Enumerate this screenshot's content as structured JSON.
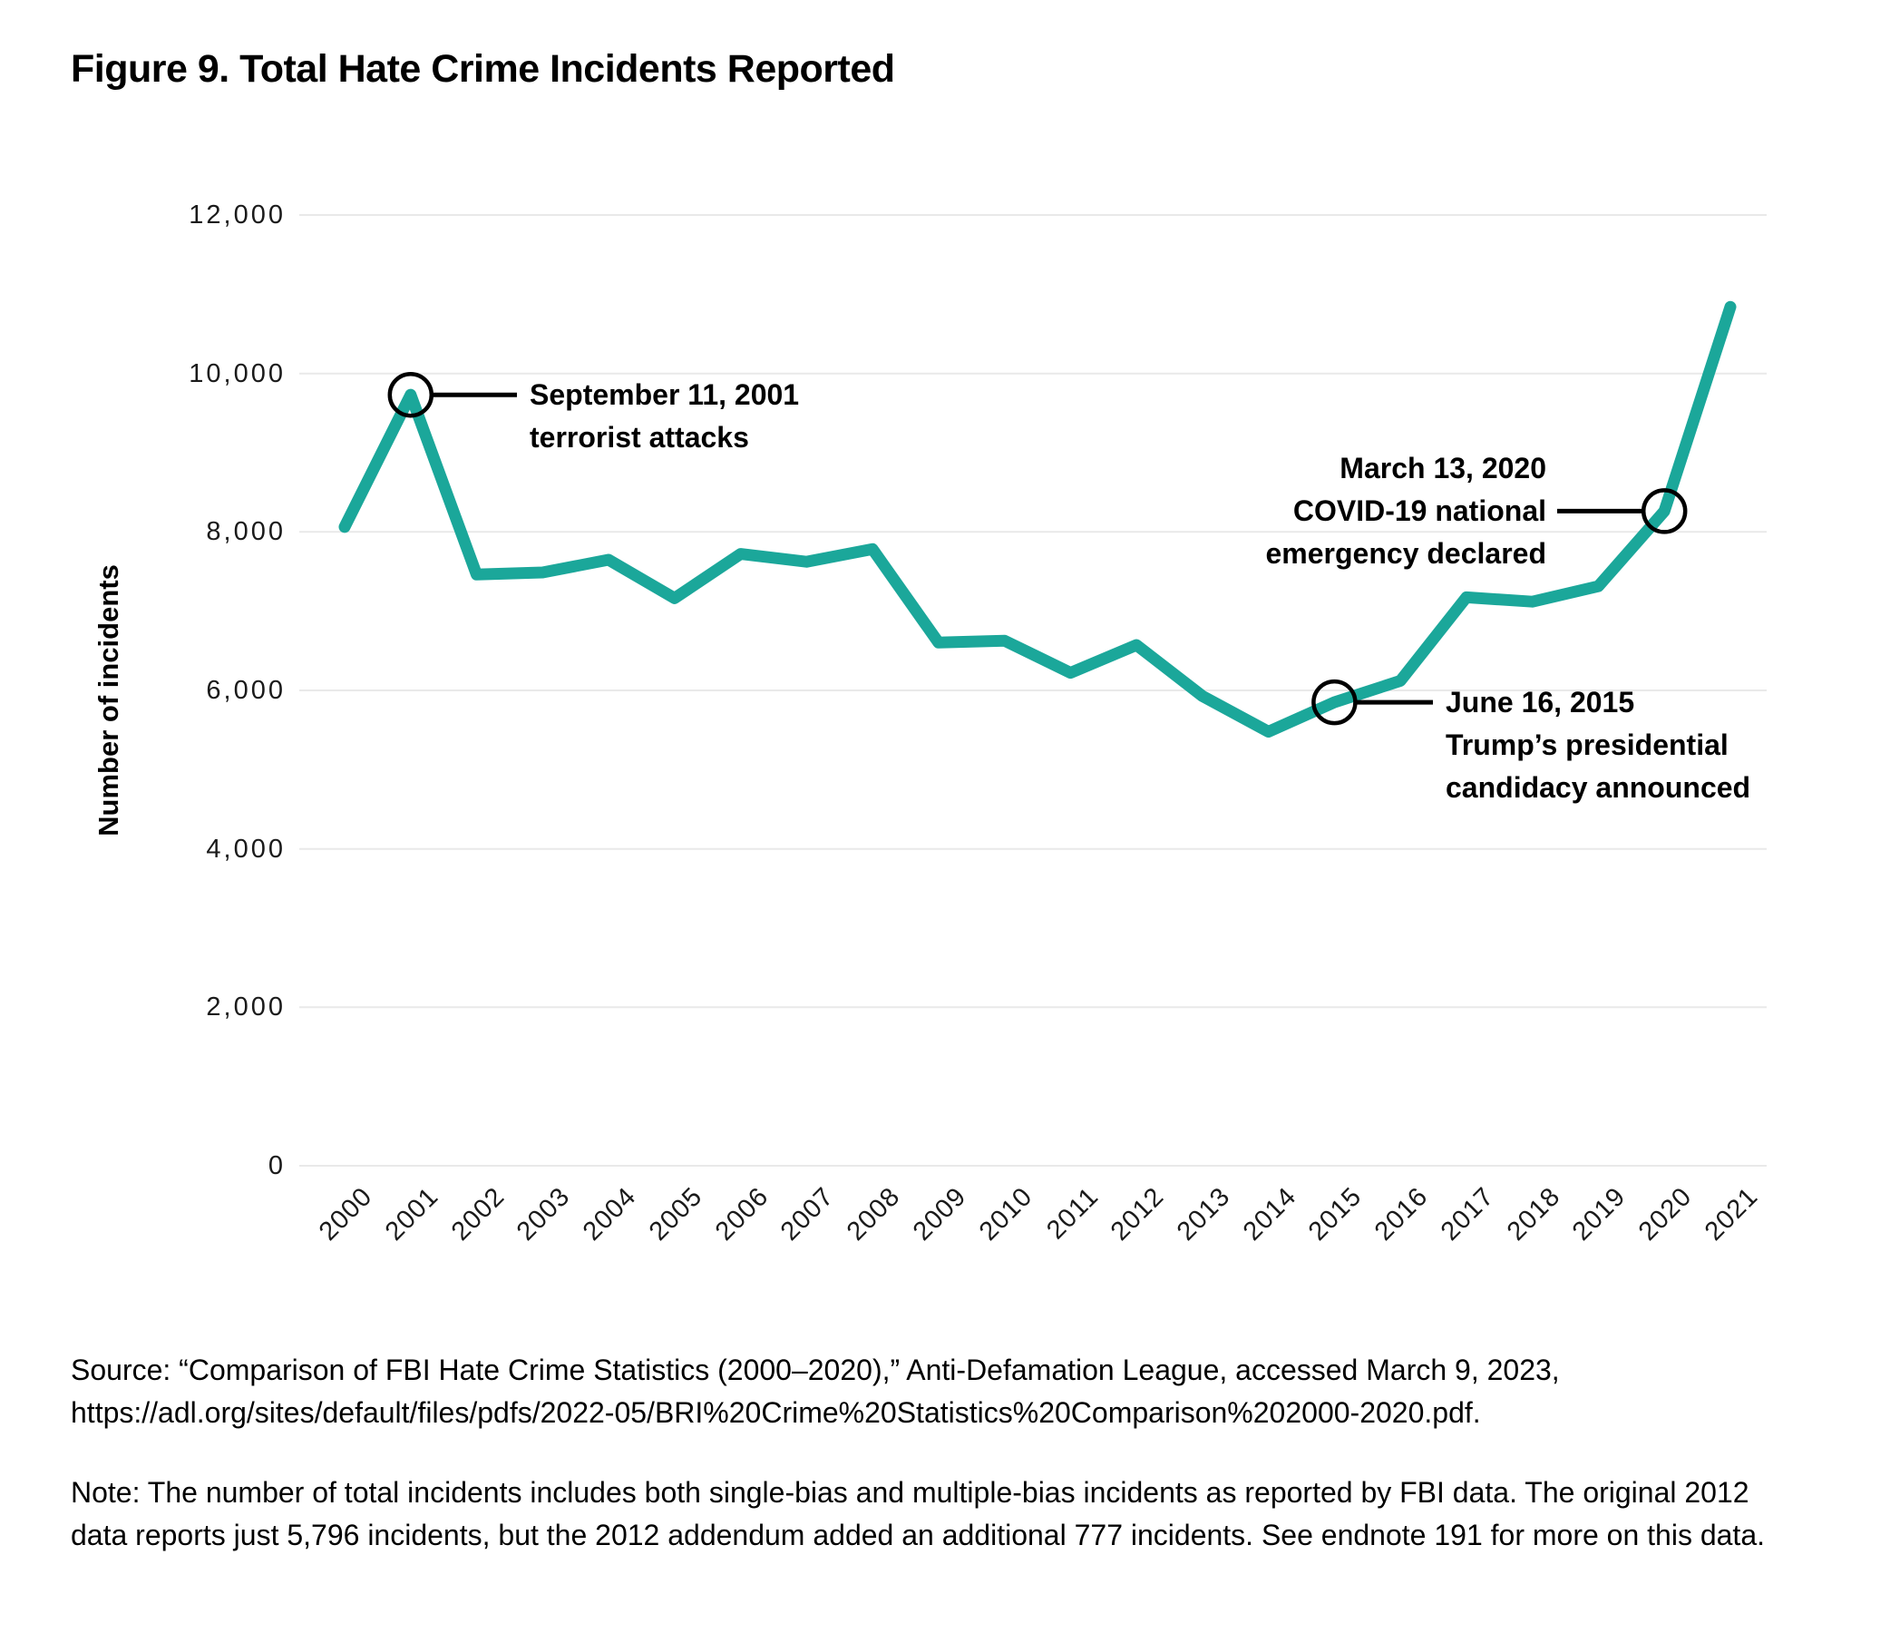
{
  "figure": {
    "title": "Figure 9. Total Hate Crime Incidents Reported",
    "source": "Source: “Comparison of FBI Hate Crime Statistics (2000–2020),” Anti-Defamation League, accessed March 9, 2023, https://adl.org/sites/default/files/pdfs/2022-05/BRI%20Crime%20Statistics%20Comparison%202000-2020.pdf.",
    "note": "Note: The number of total incidents includes both single-bias and multiple-bias incidents as reported by FBI data. The original 2012 data reports just 5,796 incidents, but the 2012 addendum added an additional 777 incidents. See endnote 191 for more on this data."
  },
  "chart_data": {
    "type": "line",
    "title": "Figure 9. Total Hate Crime Incidents Reported",
    "xlabel": "",
    "ylabel": "Number of incidents",
    "ylim": [
      0,
      12000
    ],
    "grid": true,
    "legend": "none",
    "line_color": "#1BA79A",
    "grid_color": "#E9E9E9",
    "annotation_color": "#000000",
    "categories": [
      "2000",
      "2001",
      "2002",
      "2003",
      "2004",
      "2005",
      "2006",
      "2007",
      "2008",
      "2009",
      "2010",
      "2011",
      "2012",
      "2013",
      "2014",
      "2015",
      "2016",
      "2017",
      "2018",
      "2019",
      "2020",
      "2021"
    ],
    "series": [
      {
        "name": "Total hate crime incidents",
        "values": [
          8063,
          9730,
          7462,
          7489,
          7649,
          7163,
          7722,
          7624,
          7783,
          6604,
          6628,
          6222,
          6573,
          5928,
          5479,
          5850,
          6121,
          7175,
          7120,
          7314,
          8263,
          10840
        ]
      }
    ],
    "yticks": {
      "values": [
        0,
        2000,
        4000,
        6000,
        8000,
        10000,
        12000
      ],
      "labels": [
        "0",
        "2,000",
        "4,000",
        "6,000",
        "8,000",
        "10,000",
        "12,000"
      ]
    },
    "annotations": [
      {
        "year": "2001",
        "lines": [
          "September 11, 2001",
          "terrorist attacks"
        ]
      },
      {
        "year": "2020",
        "lines": [
          "March 13, 2020",
          "COVID-19 national",
          "emergency declared"
        ]
      },
      {
        "year": "2015",
        "lines": [
          "June 16, 2015",
          "Trump’s presidential",
          "candidacy announced"
        ]
      }
    ]
  }
}
